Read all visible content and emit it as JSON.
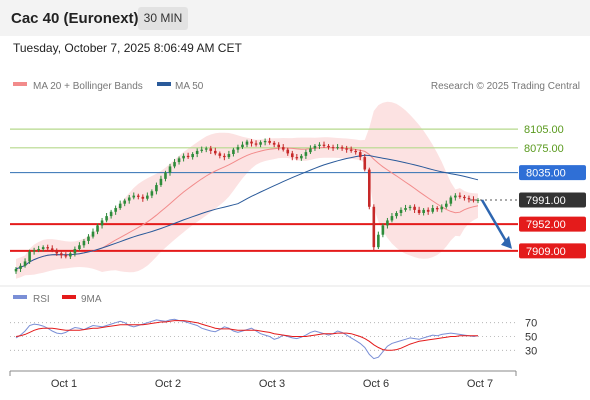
{
  "header": {
    "instrument": "Cac 40 (Euronext)",
    "timeframe_button": "30 MIN",
    "datetime": "Tuesday, October 7, 2025 8:06:49 AM CET",
    "credit": "Research © 2025 Trading Central"
  },
  "colors": {
    "bollinger": "#f28b8b",
    "ma50": "#2a5a9a",
    "up_candle": "#2e8b3a",
    "down_candle": "#c62828",
    "resistance": "#b5d98c",
    "blue_level": "#2f6fb2",
    "support": "#e41b1b",
    "arrow": "#2e66b0",
    "rsi": "#7a8fd6",
    "rsi_ma": "#e41b1b"
  },
  "chart_data": [
    {
      "type": "candlestick",
      "title": "Cac 40 (Euronext)",
      "interval": "30 MIN",
      "legend": [
        {
          "label": "MA 20 + Bollinger Bands",
          "color": "#f28b8b"
        },
        {
          "label": "MA 50",
          "color": "#2a5a9a"
        }
      ],
      "x_ticks": [
        "Oct 1",
        "Oct 2",
        "Oct 3",
        "Oct 6",
        "Oct 7"
      ],
      "ylim": [
        7875,
        8160
      ],
      "levels": [
        {
          "value": 8105.0,
          "label": "8105.00",
          "kind": "resistance"
        },
        {
          "value": 8075.0,
          "label": "8075.00",
          "kind": "resistance"
        },
        {
          "value": 8035.0,
          "label": "8035.00",
          "kind": "pivot"
        },
        {
          "value": 7991.0,
          "label": "7991.00",
          "kind": "last"
        },
        {
          "value": 7952.0,
          "label": "7952.00",
          "kind": "support"
        },
        {
          "value": 7909.0,
          "label": "7909.00",
          "kind": "support"
        }
      ],
      "close": [
        7880,
        7885,
        7892,
        7908,
        7910,
        7912,
        7915,
        7913,
        7910,
        7905,
        7902,
        7900,
        7905,
        7912,
        7918,
        7925,
        7932,
        7940,
        7950,
        7958,
        7965,
        7972,
        7978,
        7985,
        7990,
        7995,
        7998,
        7996,
        7993,
        7998,
        8005,
        8015,
        8025,
        8035,
        8045,
        8052,
        8058,
        8062,
        8060,
        8065,
        8070,
        8072,
        8074,
        8070,
        8066,
        8062,
        8060,
        8065,
        8072,
        8076,
        8080,
        8085,
        8082,
        8080,
        8084,
        8086,
        8083,
        8080,
        8076,
        8072,
        8066,
        8060,
        8058,
        8062,
        8068,
        8074,
        8078,
        8080,
        8078,
        8076,
        8075,
        8076,
        8074,
        8072,
        8070,
        8068,
        8060,
        8040,
        7980,
        7915,
        7935,
        7950,
        7958,
        7965,
        7970,
        7975,
        7978,
        7980,
        7975,
        7970,
        7975,
        7972,
        7978,
        7976,
        7980,
        7985,
        7995,
        7998,
        7996,
        7994,
        7992,
        7990,
        7991
      ],
      "annotation": "projected path down toward 7909.00"
    },
    {
      "type": "line",
      "title": "",
      "legend": [
        {
          "label": "RSI",
          "color": "#7a8fd6"
        },
        {
          "label": "9MA",
          "color": "#e41b1b"
        }
      ],
      "ylim": [
        0,
        100
      ],
      "y_ticks": [
        30,
        50,
        70
      ],
      "series": [
        {
          "name": "RSI",
          "values": [
            48,
            52,
            58,
            66,
            68,
            67,
            65,
            62,
            58,
            55,
            54,
            56,
            60,
            63,
            62,
            60,
            63,
            66,
            65,
            64,
            66,
            68,
            70,
            72,
            70,
            66,
            64,
            66,
            68,
            70,
            72,
            74,
            73,
            72,
            74,
            75,
            73,
            72,
            70,
            68,
            66,
            62,
            60,
            58,
            57,
            60,
            64,
            62,
            58,
            56,
            58,
            60,
            62,
            58,
            54,
            52,
            50,
            46,
            48,
            52,
            50,
            48,
            47,
            49,
            52,
            56,
            58,
            56,
            54,
            52,
            54,
            58,
            56,
            52,
            48,
            44,
            40,
            34,
            24,
            18,
            20,
            28,
            36,
            40,
            42,
            44,
            46,
            48,
            47,
            46,
            48,
            50,
            52,
            51,
            53,
            54,
            55,
            54,
            53,
            52,
            51,
            50,
            51
          ]
        },
        {
          "name": "9MA",
          "values": [
            50,
            51,
            53,
            56,
            59,
            61,
            62,
            62,
            62,
            61,
            60,
            59,
            59,
            59,
            59,
            60,
            61,
            62,
            62,
            63,
            64,
            65,
            66,
            67,
            67,
            67,
            67,
            67,
            67,
            68,
            69,
            70,
            71,
            71,
            72,
            73,
            73,
            73,
            72,
            71,
            70,
            68,
            66,
            64,
            62,
            61,
            61,
            61,
            60,
            59,
            59,
            59,
            59,
            59,
            58,
            57,
            56,
            54,
            53,
            52,
            51,
            50,
            50,
            50,
            50,
            51,
            52,
            53,
            54,
            54,
            54,
            55,
            55,
            55,
            54,
            52,
            50,
            47,
            43,
            38,
            34,
            31,
            30,
            30,
            31,
            33,
            36,
            39,
            41,
            43,
            44,
            45,
            46,
            47,
            48,
            49,
            50,
            50,
            51,
            51,
            51,
            51,
            51
          ]
        }
      ]
    }
  ]
}
